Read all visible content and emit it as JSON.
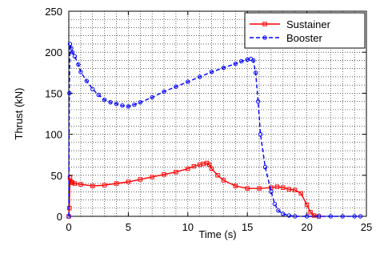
{
  "chart_data": {
    "type": "line",
    "title": "",
    "xlabel": "Time (s)",
    "ylabel": "Thrust (kN)",
    "xlim": [
      0,
      25
    ],
    "ylim": [
      0,
      250
    ],
    "xticks": [
      0,
      5,
      10,
      15,
      20,
      25
    ],
    "yticks": [
      0,
      50,
      100,
      150,
      200,
      250
    ],
    "grid": "dotted",
    "legend_position": "top-right",
    "series": [
      {
        "name": "Sustainer",
        "color": "#ff0000",
        "marker": "square",
        "line_style": "solid",
        "x": [
          0,
          0.05,
          0.1,
          0.2,
          0.3,
          0.5,
          1,
          2,
          3,
          4,
          5,
          6,
          7,
          8,
          9,
          10,
          10.5,
          11,
          11.3,
          11.6,
          11.8,
          12,
          12.5,
          13,
          14,
          15,
          16,
          17,
          17.5,
          18,
          18.5,
          19,
          19.5,
          20,
          20.3,
          20.6,
          21
        ],
        "y": [
          0,
          10,
          47,
          42,
          41,
          40,
          39,
          37,
          38,
          40,
          42,
          45,
          48,
          51,
          54,
          58,
          61,
          63,
          64,
          65,
          63,
          58,
          50,
          44,
          37,
          34,
          34,
          35,
          36,
          35,
          33,
          32,
          28,
          14,
          5,
          1,
          0
        ]
      },
      {
        "name": "Booster",
        "color": "#0000ff",
        "marker": "circle",
        "line_style": "dashed",
        "x": [
          0,
          0.05,
          0.1,
          0.2,
          0.3,
          0.5,
          0.8,
          1,
          1.5,
          2,
          2.5,
          3,
          3.5,
          4,
          4.5,
          5,
          5.5,
          6,
          7,
          8,
          9,
          10,
          11,
          12,
          13,
          14,
          14.5,
          15,
          15.3,
          15.5,
          15.7,
          15.9,
          16.1,
          16.5,
          17,
          17.3,
          17.6,
          18,
          18.5,
          19,
          20,
          21,
          22,
          23,
          24,
          24.5
        ],
        "y": [
          0,
          150,
          210,
          205,
          200,
          195,
          185,
          176,
          165,
          155,
          148,
          142,
          139,
          137,
          135,
          134,
          136,
          139,
          145,
          152,
          158,
          164,
          170,
          176,
          181,
          186,
          189,
          191,
          192,
          190,
          175,
          140,
          100,
          60,
          30,
          15,
          7,
          3,
          1,
          0,
          0,
          0,
          0,
          0,
          0,
          0
        ]
      }
    ]
  }
}
